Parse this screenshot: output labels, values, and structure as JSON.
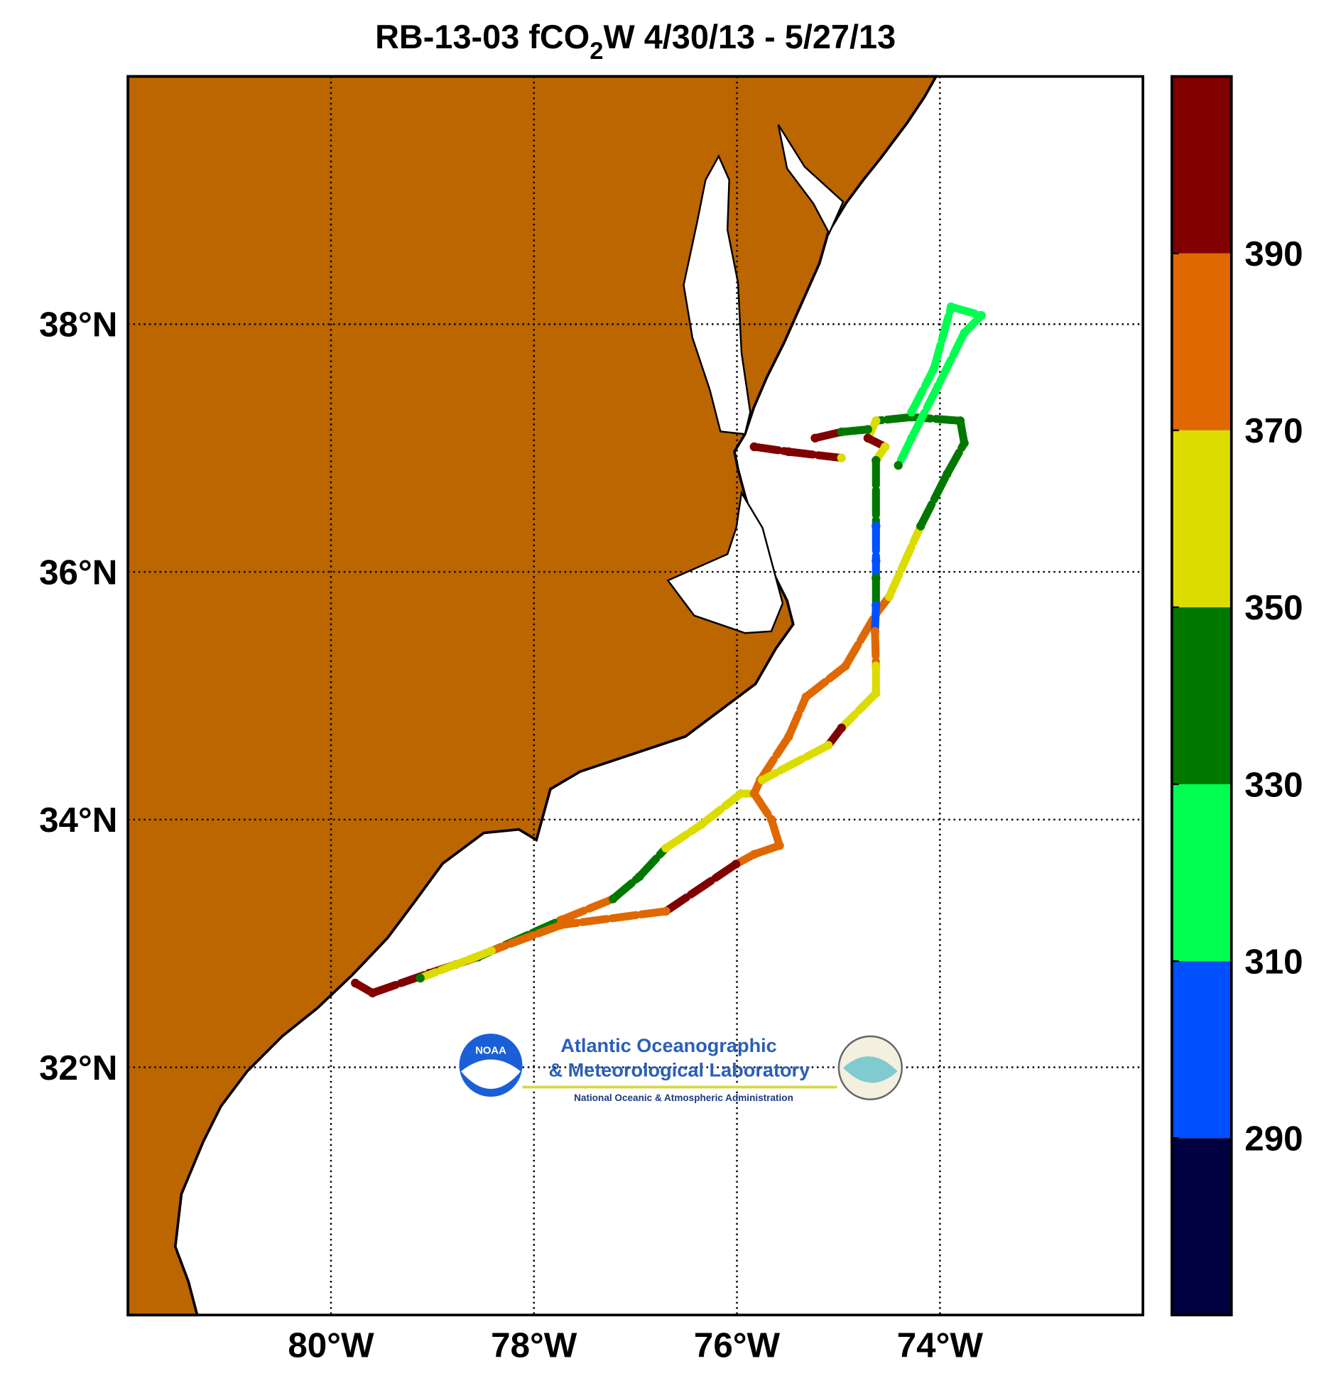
{
  "chart_data": {
    "type": "track-map",
    "title": {
      "before": "RB-13-03 fCO",
      "subscript": "2",
      "after": "W 4/30/13 - 5/27/13"
    },
    "xlim": [
      -82,
      -72
    ],
    "ylim": [
      30,
      40
    ],
    "xticks": [
      {
        "value": -80,
        "label": "80°W"
      },
      {
        "value": -78,
        "label": "78°W"
      },
      {
        "value": -76,
        "label": "76°W"
      },
      {
        "value": -74,
        "label": "74°W"
      }
    ],
    "yticks": [
      {
        "value": 32,
        "label": "32°N"
      },
      {
        "value": 34,
        "label": "34°N"
      },
      {
        "value": 36,
        "label": "36°N"
      },
      {
        "value": 38,
        "label": "38°N"
      }
    ],
    "grid": true,
    "land_color": "#bb6600",
    "colorbar": {
      "clim": [
        270,
        410
      ],
      "ticks": [
        290,
        310,
        330,
        350,
        370,
        390
      ],
      "colors": [
        "#000040",
        "#0050ff",
        "#00ff50",
        "#007800",
        "#dcdc00",
        "#e06800",
        "#800000"
      ]
    },
    "track": {
      "lon": [
        -79.76,
        -79.59,
        -79.03,
        -78.77,
        -78.55,
        -77.73,
        -77.22,
        -76.96,
        -76.7,
        -76.35,
        -75.96,
        -75.83,
        -75.66,
        -75.58,
        -75.83,
        -76.01,
        -76.7,
        -77.73,
        -78.42,
        -79.12,
        null,
        -75.83,
        -75.77,
        -75.49,
        -75.32,
        -74.93,
        -74.63,
        -74.5,
        -74.19,
        -73.93,
        -73.76,
        -73.8,
        -74.28,
        -74.63,
        -74.71,
        -74.54,
        -74.63,
        -74.63,
        -74.63,
        -74.63,
        -74.63,
        -74.64,
        -74.63,
        -74.63,
        -74.97,
        -75.1,
        -75.75,
        null,
        -74.28,
        -74.06,
        -73.89,
        -73.59,
        -73.76,
        -74.02,
        -74.28,
        -74.41,
        null,
        -75.83,
        -75.49,
        -74.97,
        null,
        -75.23,
        -74.97,
        -74.71
      ],
      "lat": [
        32.68,
        32.6,
        32.76,
        32.83,
        32.89,
        33.19,
        33.36,
        33.54,
        33.77,
        33.96,
        34.21,
        34.21,
        34.0,
        33.79,
        33.72,
        33.64,
        33.26,
        33.15,
        32.94,
        32.72,
        null,
        34.21,
        34.32,
        34.67,
        34.99,
        35.24,
        35.66,
        35.8,
        36.37,
        36.79,
        37.04,
        37.22,
        37.25,
        37.22,
        37.08,
        37.01,
        36.9,
        36.37,
        36.09,
        35.95,
        35.73,
        35.52,
        35.24,
        35.02,
        34.74,
        34.6,
        34.32,
        null,
        37.29,
        37.64,
        38.14,
        38.07,
        37.93,
        37.5,
        37.08,
        36.86,
        null,
        37.01,
        36.97,
        36.92,
        null,
        37.08,
        37.13,
        37.15
      ],
      "fco2": [
        395,
        395,
        395,
        380,
        340,
        380,
        340,
        340,
        360,
        360,
        360,
        380,
        380,
        380,
        380,
        395,
        380,
        380,
        360,
        340,
        null,
        380,
        380,
        380,
        380,
        380,
        380,
        360,
        340,
        340,
        340,
        340,
        340,
        360,
        395,
        360,
        340,
        300,
        300,
        340,
        300,
        380,
        360,
        360,
        395,
        360,
        360,
        null,
        320,
        320,
        320,
        320,
        320,
        320,
        320,
        340,
        null,
        395,
        395,
        360,
        null,
        395,
        340,
        340
      ]
    },
    "logo": {
      "badge": "NOAA",
      "line1": "Atlantic Oceanographic",
      "line2": "& Meteorological Laboratory",
      "line3": "National Oceanic & Atmospheric Administration"
    }
  }
}
